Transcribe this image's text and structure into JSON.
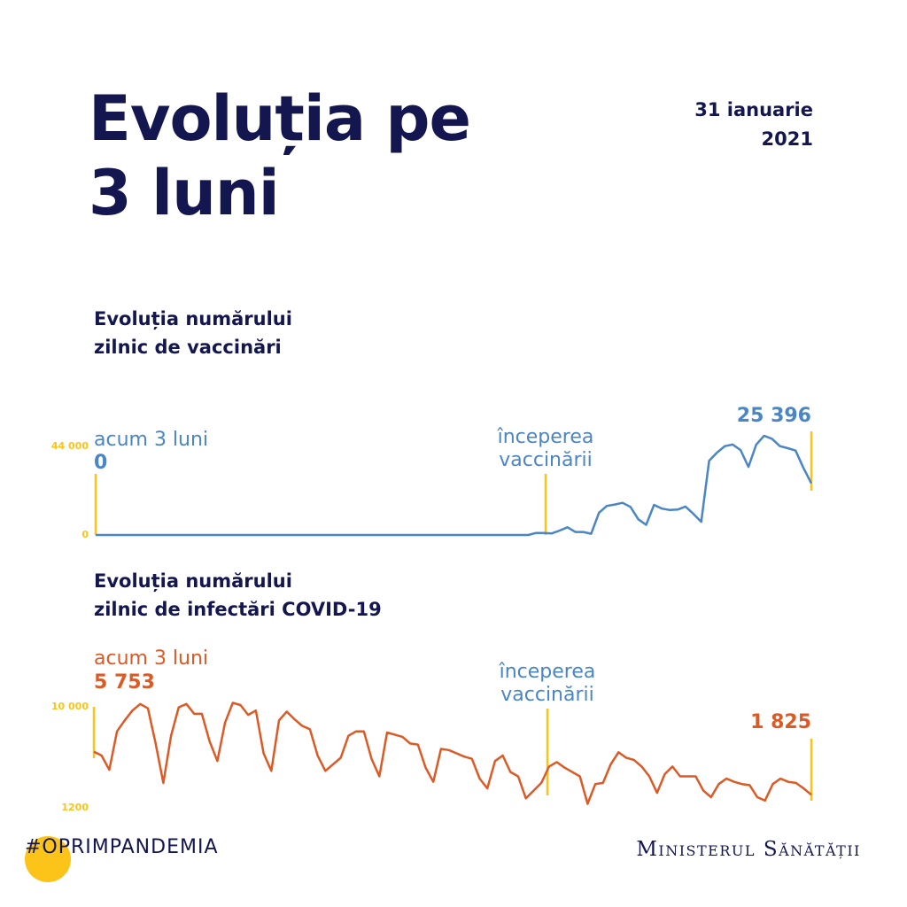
{
  "header": {
    "title_line1": "Evoluția pe",
    "title_line2": "3 luni",
    "date_line1": "31 ianuarie",
    "date_line2": "2021"
  },
  "colors": {
    "navy": "#13164f",
    "vaccination_blue": "#4a86c5",
    "infection_orange": "#db5a26",
    "marker_yellow": "#fcc319"
  },
  "chart_data": [
    {
      "type": "line",
      "title_line1": "Evoluția numărului",
      "title_line2": "zilnic de vaccinări",
      "ylim": [
        0,
        44000
      ],
      "ytick_labels": [
        "44 000",
        "0"
      ],
      "start_label": "acum 3 luni",
      "start_value_label": "0",
      "marker_label_line1": "începerea",
      "marker_label_line2": "vaccinării",
      "end_value_label": "25 396",
      "vaccination_start_index": 55,
      "series": [
        {
          "values": [
            0,
            0,
            0,
            0,
            0,
            0,
            0,
            0,
            0,
            0,
            0,
            0,
            0,
            0,
            0,
            0,
            0,
            0,
            0,
            0,
            0,
            0,
            0,
            0,
            0,
            0,
            0,
            0,
            0,
            0,
            0,
            0,
            0,
            0,
            0,
            0,
            0,
            0,
            0,
            0,
            0,
            0,
            0,
            0,
            0,
            0,
            0,
            0,
            0,
            0,
            0,
            0,
            0,
            0,
            0,
            0,
            1000,
            1000,
            800,
            2200,
            3800,
            1500,
            1500,
            600,
            11000,
            14300,
            15000,
            15800,
            13800,
            7700,
            5000,
            14800,
            13000,
            12300,
            12500,
            14000,
            10400,
            6500,
            36500,
            40500,
            43700,
            44500,
            41800,
            33500,
            44500,
            48800,
            47300,
            43700,
            42700,
            41500,
            33000,
            25396
          ]
        }
      ]
    },
    {
      "type": "line",
      "title_line1": "Evoluția numărului",
      "title_line2": "zilnic de infectări COVID-19",
      "ylim": [
        1200,
        10000
      ],
      "ytick_labels": [
        "10 000",
        "1200"
      ],
      "start_label": "acum 3 luni",
      "start_value_label": "5 753",
      "marker_label_line1": "începerea",
      "marker_label_line2": "vaccinării",
      "end_value_label": "1 825",
      "vaccination_start_index": 55,
      "series": [
        {
          "values": [
            5753,
            5400,
            4100,
            7600,
            8600,
            9500,
            10100,
            9700,
            6500,
            2900,
            7200,
            9800,
            10100,
            9200,
            9200,
            6700,
            4900,
            8400,
            10200,
            10000,
            9100,
            9500,
            5600,
            4000,
            8600,
            9400,
            8700,
            8100,
            7800,
            5400,
            4000,
            4600,
            5200,
            7200,
            7600,
            7600,
            5100,
            3500,
            7500,
            7300,
            7100,
            6500,
            6400,
            4300,
            3000,
            6000,
            5900,
            5600,
            5300,
            5100,
            3300,
            2400,
            4900,
            5400,
            3900,
            3500,
            1500,
            2200,
            2900,
            4400,
            4800,
            4300,
            3900,
            3500,
            1000,
            2800,
            2900,
            4600,
            5700,
            5200,
            5000,
            4400,
            3500,
            2000,
            3700,
            4400,
            3500,
            3500,
            3500,
            2200,
            1600,
            2800,
            3300,
            3000,
            2800,
            2700,
            1600,
            1300,
            2800,
            3300,
            3000,
            2900,
            2400,
            1825
          ]
        }
      ]
    }
  ],
  "footer": {
    "hashtag": "#OPRIMPANDEMIA",
    "ministry": "Ministerul Sănătății"
  }
}
